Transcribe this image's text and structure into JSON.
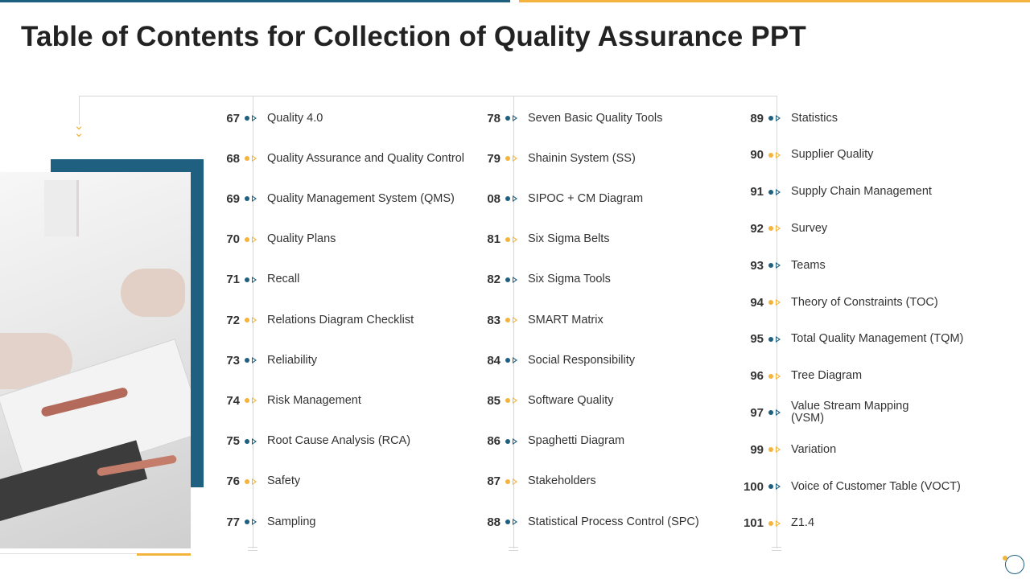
{
  "title": "Table of Contents for Collection of Quality Assurance PPT",
  "colors": {
    "blue": "#1f6080",
    "orange": "#f3b33d"
  },
  "columns": [
    {
      "items": [
        {
          "num": "67",
          "label": "Quality 4.0",
          "color": "blue"
        },
        {
          "num": "68",
          "label": "Quality Assurance and Quality Control",
          "color": "orange"
        },
        {
          "num": "69",
          "label": "Quality Management System (QMS)",
          "color": "blue"
        },
        {
          "num": "70",
          "label": "Quality Plans",
          "color": "orange"
        },
        {
          "num": "71",
          "label": "Recall",
          "color": "blue"
        },
        {
          "num": "72",
          "label": "Relations Diagram Checklist",
          "color": "orange"
        },
        {
          "num": "73",
          "label": "Reliability",
          "color": "blue"
        },
        {
          "num": "74",
          "label": "Risk Management",
          "color": "orange"
        },
        {
          "num": "75",
          "label": "Root Cause Analysis (RCA)",
          "color": "blue"
        },
        {
          "num": "76",
          "label": "Safety",
          "color": "orange"
        },
        {
          "num": "77",
          "label": "Sampling",
          "color": "blue"
        }
      ]
    },
    {
      "items": [
        {
          "num": "78",
          "label": "Seven Basic Quality Tools",
          "color": "blue"
        },
        {
          "num": "79",
          "label": "Shainin System (SS)",
          "color": "orange"
        },
        {
          "num": "08",
          "label": "SIPOC + CM Diagram",
          "color": "blue"
        },
        {
          "num": "81",
          "label": "Six Sigma Belts",
          "color": "orange"
        },
        {
          "num": "82",
          "label": "Six Sigma Tools",
          "color": "blue"
        },
        {
          "num": "83",
          "label": "SMART Matrix",
          "color": "orange"
        },
        {
          "num": "84",
          "label": "Social Responsibility",
          "color": "blue"
        },
        {
          "num": "85",
          "label": "Software Quality",
          "color": "orange"
        },
        {
          "num": "86",
          "label": "Spaghetti Diagram",
          "color": "blue"
        },
        {
          "num": "87",
          "label": "Stakeholders",
          "color": "orange"
        },
        {
          "num": "88",
          "label": "Statistical Process Control (SPC)",
          "color": "blue"
        }
      ]
    },
    {
      "items": [
        {
          "num": "89",
          "label": "Statistics",
          "color": "blue"
        },
        {
          "num": "90",
          "label": "Supplier Quality",
          "color": "orange"
        },
        {
          "num": "91",
          "label": "Supply Chain Management",
          "color": "blue"
        },
        {
          "num": "92",
          "label": "Survey",
          "color": "orange"
        },
        {
          "num": "93",
          "label": "Teams",
          "color": "blue"
        },
        {
          "num": "94",
          "label": "Theory of Constraints (TOC)",
          "color": "orange"
        },
        {
          "num": "95",
          "label": "Total Quality Management (TQM)",
          "color": "blue"
        },
        {
          "num": "96",
          "label": "Tree Diagram",
          "color": "orange"
        },
        {
          "num": "97",
          "label": "Value Stream Mapping\n(VSM)",
          "color": "blue"
        },
        {
          "num": "99",
          "label": "Variation",
          "color": "orange"
        },
        {
          "num": "100",
          "label": "Voice of Customer Table (VOCT)",
          "color": "blue"
        },
        {
          "num": "101",
          "label": "Z1.4",
          "color": "orange"
        }
      ]
    }
  ]
}
